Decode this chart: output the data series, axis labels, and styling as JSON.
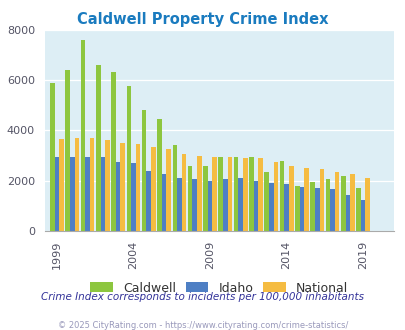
{
  "title": "Caldwell Property Crime Index",
  "years": [
    1999,
    2000,
    2001,
    2002,
    2003,
    2004,
    2005,
    2006,
    2007,
    2008,
    2009,
    2010,
    2011,
    2012,
    2013,
    2014,
    2015,
    2016,
    2017,
    2018,
    2019,
    2020
  ],
  "caldwell": [
    5900,
    6400,
    7600,
    6600,
    6300,
    5750,
    4800,
    4450,
    3400,
    2600,
    2600,
    2950,
    2950,
    2950,
    2350,
    2800,
    1800,
    1950,
    2050,
    2200,
    1700,
    null
  ],
  "idaho": [
    2950,
    2950,
    2950,
    2950,
    2750,
    2700,
    2400,
    2250,
    2100,
    2050,
    2000,
    2050,
    2100,
    2000,
    1900,
    1850,
    1750,
    1700,
    1650,
    1450,
    1250,
    null
  ],
  "national": [
    3650,
    3700,
    3700,
    3600,
    3500,
    3450,
    3350,
    3250,
    3050,
    3000,
    2950,
    2950,
    2900,
    2900,
    2750,
    2600,
    2500,
    2450,
    2350,
    2250,
    2100,
    null
  ],
  "caldwell_color": "#8dc63f",
  "idaho_color": "#4e7fc4",
  "national_color": "#f5bc42",
  "bg_color": "#ddeef5",
  "title_color": "#1a7bbf",
  "ylim": [
    0,
    8000
  ],
  "yticks": [
    0,
    2000,
    4000,
    6000,
    8000
  ],
  "xtick_labels": [
    "1999",
    "2004",
    "2009",
    "2014",
    "2019"
  ],
  "xtick_positions": [
    1999,
    2004,
    2009,
    2014,
    2019
  ],
  "subtitle": "Crime Index corresponds to incidents per 100,000 inhabitants",
  "footer": "© 2025 CityRating.com - https://www.cityrating.com/crime-statistics/",
  "legend_labels": [
    "Caldwell",
    "Idaho",
    "National"
  ],
  "subtitle_color": "#333399",
  "footer_color": "#9999bb"
}
